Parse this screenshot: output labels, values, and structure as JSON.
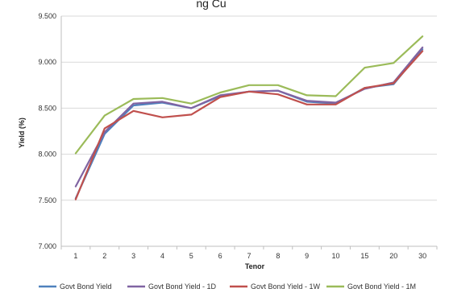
{
  "chart_data": {
    "type": "line",
    "title": "ng Cu",
    "xlabel": "Tenor",
    "ylabel": "Yield (%)",
    "categories": [
      "1",
      "2",
      "3",
      "4",
      "5",
      "6",
      "7",
      "8",
      "9",
      "10",
      "15",
      "20",
      "30"
    ],
    "ylim": [
      7.0,
      9.5
    ],
    "yticks": [
      "7.000",
      "7.500",
      "8.000",
      "8.500",
      "9.000",
      "9.500"
    ],
    "grid": true,
    "legend_position": "bottom",
    "series": [
      {
        "name": "Govt Bond Yield",
        "color": "#4F81BD",
        "values": [
          7.52,
          8.22,
          8.53,
          8.56,
          8.5,
          8.63,
          8.68,
          8.69,
          8.57,
          8.55,
          8.72,
          8.76,
          9.14
        ]
      },
      {
        "name": "Govt Bond Yield - 1D",
        "color": "#8064A2",
        "values": [
          7.65,
          8.24,
          8.55,
          8.57,
          8.5,
          8.64,
          8.68,
          8.69,
          8.58,
          8.56,
          8.71,
          8.78,
          9.16
        ]
      },
      {
        "name": "Govt Bond Yield - 1W",
        "color": "#C0504D",
        "values": [
          7.51,
          8.28,
          8.47,
          8.4,
          8.43,
          8.62,
          8.68,
          8.65,
          8.54,
          8.54,
          8.72,
          8.77,
          9.12
        ]
      },
      {
        "name": "Govt Bond Yield - 1M",
        "color": "#9BBB59",
        "values": [
          8.01,
          8.42,
          8.6,
          8.61,
          8.55,
          8.67,
          8.75,
          8.75,
          8.64,
          8.63,
          8.94,
          8.99,
          9.28
        ]
      }
    ]
  }
}
